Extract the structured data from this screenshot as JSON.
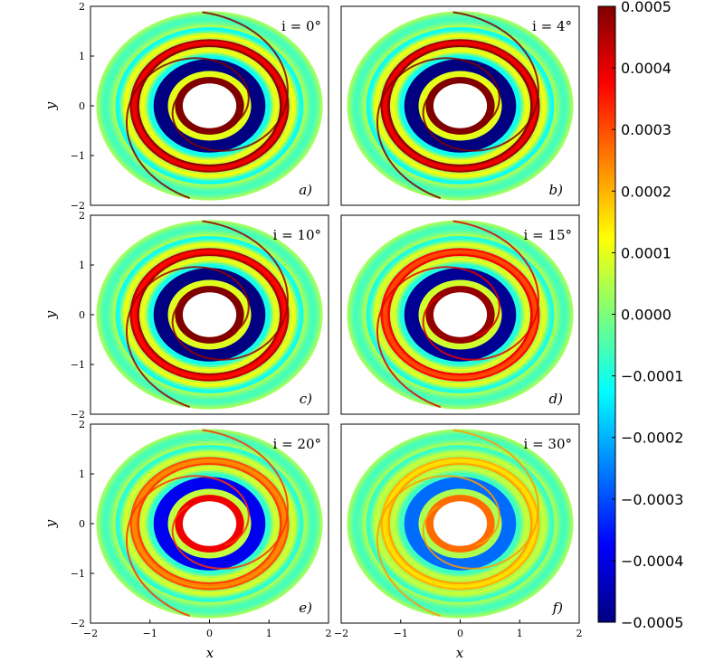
{
  "chart_data": {
    "type": "heatmap",
    "layout": "3x2 grid of polar-disc maps sharing one colorbar",
    "colormap": "jet",
    "xlabel": "x",
    "ylabel": "y",
    "xlim": [
      -2,
      2
    ],
    "ylim": [
      -2,
      2
    ],
    "x_ticks": [
      "−2",
      "−1",
      "0",
      "1",
      "2"
    ],
    "y_ticks": [
      "2",
      "1",
      "0",
      "−1",
      "−2"
    ],
    "colorbar": {
      "range": [
        -0.0005,
        0.0005
      ],
      "ticks": [
        "0.0005",
        "0.0004",
        "0.0003",
        "0.0002",
        "0.0001",
        "0.0000",
        "−0.0001",
        "−0.0002",
        "−0.0003",
        "−0.0004",
        "−0.0005"
      ]
    },
    "panels": [
      {
        "id": "a",
        "label": "a)",
        "inclination": "i = 0°",
        "incl_deg": 0,
        "strength": 1.0
      },
      {
        "id": "b",
        "label": "b)",
        "inclination": "i = 4°",
        "incl_deg": 4,
        "strength": 1.0
      },
      {
        "id": "c",
        "label": "c)",
        "inclination": "i = 10°",
        "incl_deg": 10,
        "strength": 0.95
      },
      {
        "id": "d",
        "label": "d)",
        "inclination": "i = 15°",
        "incl_deg": 15,
        "strength": 0.8
      },
      {
        "id": "e",
        "label": "e)",
        "inclination": "i = 20°",
        "incl_deg": 20,
        "strength": 0.65
      },
      {
        "id": "f",
        "label": "f)",
        "inclination": "i = 30°",
        "incl_deg": 30,
        "strength": 0.45
      }
    ]
  }
}
